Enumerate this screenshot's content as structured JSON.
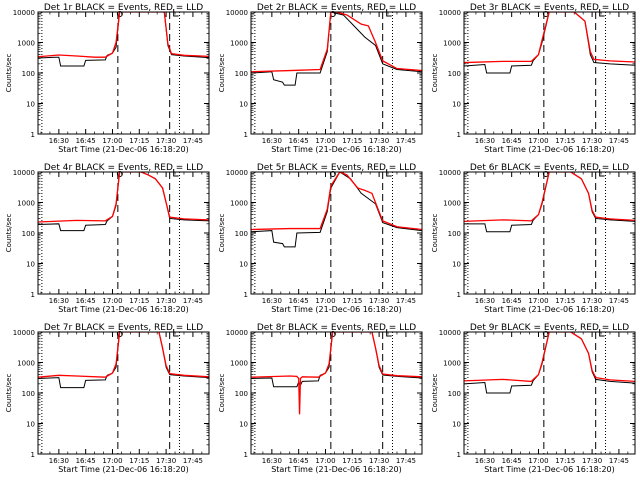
{
  "chart_data": {
    "type": "line",
    "layout": "3x3 grid",
    "colors": {
      "events": "#000000",
      "lld": "#ff0000",
      "markers": "#000000"
    },
    "xlabel": "Start Time (21-Dec-06 16:18:20)",
    "ylabel": "Counts/sec",
    "x_ticks": [
      "16:30",
      "16:45",
      "17:00",
      "17:15",
      "17:30",
      "17:45"
    ],
    "x_tick_minutes": [
      30,
      45,
      60,
      75,
      90,
      105
    ],
    "y_ticks": [
      "1",
      "10",
      "100",
      "1000",
      "10000"
    ],
    "y_tick_values": [
      1,
      10,
      100,
      1000,
      10000
    ],
    "xlim_minutes_after_1600": [
      18.333,
      114.0
    ],
    "ylim": [
      1,
      10000
    ],
    "y_scale": "log",
    "dotted_lines_minutes": [
      20.5,
      97.5
    ],
    "dashed_lines_minutes": [
      63.0,
      92.0
    ],
    "panels": [
      {
        "title": "Det 1r BLACK = Events, RED = LLD",
        "series": [
          {
            "name": "Events",
            "x": [
              18.3,
              28,
              30,
              31,
              44,
              45,
              56,
              57,
              60,
              62,
              64,
              70,
              89,
              91,
              93,
              100,
              114
            ],
            "y": [
              310,
              330,
              330,
              170,
              170,
              260,
              270,
              380,
              450,
              700,
              10000,
              10000,
              10000,
              800,
              400,
              360,
              320
            ]
          },
          {
            "name": "LLD",
            "x": [
              18.3,
              30,
              40,
              50,
              56,
              60,
              62,
              64,
              70,
              89,
              91,
              93,
              100,
              114
            ],
            "y": [
              340,
              390,
              360,
              330,
              330,
              450,
              1000,
              10000,
              10000,
              10000,
              900,
              430,
              380,
              350
            ]
          }
        ]
      },
      {
        "title": "Det 2r BLACK = Events, RED = LLD",
        "series": [
          {
            "name": "Events",
            "x": [
              18.3,
              30,
              31,
              36,
              37,
              43,
              44,
              57,
              61,
              63,
              70,
              75,
              82,
              88,
              92,
              100,
              114
            ],
            "y": [
              100,
              110,
              60,
              50,
              40,
              40,
              100,
              100,
              500,
              10000,
              8000,
              4000,
              1500,
              800,
              200,
              130,
              110
            ]
          },
          {
            "name": "LLD",
            "x": [
              18.3,
              40,
              57,
              61,
              63,
              66,
              72,
              80,
              84,
              88,
              92,
              100,
              114
            ],
            "y": [
              110,
              120,
              130,
              600,
              10000,
              10000,
              8000,
              4000,
              3500,
              1000,
              250,
              140,
              120
            ]
          }
        ]
      },
      {
        "title": "Det 3r BLACK = Events, RED = LLD",
        "series": [
          {
            "name": "Events",
            "x": [
              18.3,
              30,
              31,
              44,
              45,
              56,
              57,
              60,
              62,
              66,
              80,
              86,
              89,
              91,
              100,
              114
            ],
            "y": [
              170,
              190,
              100,
              100,
              170,
              180,
              250,
              400,
              1000,
              10000,
              10000,
              5000,
              400,
              220,
              200,
              180
            ]
          },
          {
            "name": "LLD",
            "x": [
              18.3,
              40,
              56,
              60,
              62,
              66,
              80,
              86,
              89,
              91,
              100,
              114
            ],
            "y": [
              220,
              240,
              240,
              400,
              1200,
              10000,
              10000,
              5000,
              500,
              280,
              250,
              230
            ]
          }
        ]
      },
      {
        "title": "Det 4r BLACK = Events, RED = LLD",
        "series": [
          {
            "name": "Events",
            "x": [
              18.3,
              30,
              31,
              44,
              45,
              56,
              57,
              60,
              62,
              64,
              76,
              80,
              84,
              88,
              90,
              92,
              100,
              114
            ],
            "y": [
              190,
              200,
              120,
              120,
              180,
              190,
              250,
              350,
              800,
              10000,
              10000,
              8000,
              6000,
              3000,
              1000,
              300,
              270,
              250
            ]
          },
          {
            "name": "LLD",
            "x": [
              18.3,
              40,
              56,
              60,
              62,
              64,
              76,
              80,
              84,
              88,
              90,
              92,
              100,
              114
            ],
            "y": [
              230,
              260,
              250,
              350,
              900,
              10000,
              10000,
              8000,
              6000,
              3000,
              1000,
              330,
              290,
              270
            ]
          }
        ]
      },
      {
        "title": "Det 5r BLACK = Events, RED = LLD",
        "series": [
          {
            "name": "Events",
            "x": [
              18.3,
              30,
              31,
              36,
              37,
              43,
              44,
              57,
              61,
              63,
              68,
              74,
              80,
              88,
              92,
              100,
              114
            ],
            "y": [
              110,
              120,
              50,
              45,
              35,
              35,
              100,
              105,
              500,
              3000,
              10000,
              6000,
              2000,
              900,
              220,
              150,
              120
            ]
          },
          {
            "name": "LLD",
            "x": [
              18.3,
              40,
              57,
              61,
              63,
              68,
              72,
              78,
              82,
              86,
              89,
              92,
              100,
              114
            ],
            "y": [
              130,
              140,
              140,
              600,
              3500,
              10000,
              8000,
              3000,
              2500,
              2000,
              700,
              250,
              160,
              130
            ]
          }
        ]
      },
      {
        "title": "Det 6r BLACK = Events, RED = LLD",
        "series": [
          {
            "name": "Events",
            "x": [
              18.3,
              30,
              31,
              44,
              45,
              56,
              57,
              60,
              62,
              66,
              78,
              84,
              88,
              90,
              92,
              100,
              114
            ],
            "y": [
              200,
              200,
              110,
              110,
              180,
              190,
              260,
              400,
              900,
              10000,
              10000,
              6000,
              2000,
              500,
              300,
              270,
              240
            ]
          },
          {
            "name": "LLD",
            "x": [
              18.3,
              40,
              56,
              60,
              62,
              66,
              78,
              84,
              88,
              90,
              92,
              100,
              114
            ],
            "y": [
              240,
              270,
              250,
              400,
              1000,
              10000,
              10000,
              6000,
              2000,
              550,
              330,
              290,
              260
            ]
          }
        ]
      },
      {
        "title": "Det 7r BLACK = Events, RED = LLD",
        "series": [
          {
            "name": "Events",
            "x": [
              18.3,
              30,
              31,
              44,
              45,
              56,
              57,
              60,
              62,
              64,
              86,
              88,
              90,
              92,
              100,
              114
            ],
            "y": [
              300,
              320,
              150,
              150,
              260,
              270,
              380,
              450,
              700,
              10000,
              10000,
              3000,
              700,
              400,
              360,
              320
            ]
          },
          {
            "name": "LLD",
            "x": [
              18.3,
              30,
              40,
              56,
              60,
              62,
              64,
              86,
              88,
              90,
              92,
              100,
              114
            ],
            "y": [
              330,
              380,
              360,
              330,
              450,
              900,
              10000,
              10000,
              3000,
              800,
              430,
              380,
              340
            ]
          }
        ]
      },
      {
        "title": "Det 8r BLACK = Events, RED = LLD",
        "series": [
          {
            "name": "Events",
            "x": [
              18.3,
              30,
              31,
              44,
              45,
              46,
              47,
              56,
              57,
              60,
              62,
              64,
              86,
              88,
              90,
              92,
              100,
              114
            ],
            "y": [
              300,
              310,
              160,
              160,
              230,
              180,
              240,
              250,
              380,
              450,
              700,
              10000,
              10000,
              3000,
              700,
              390,
              350,
              310
            ]
          },
          {
            "name": "LLD",
            "x": [
              18.3,
              40,
              44,
              45,
              45.5,
              46,
              47,
              56,
              60,
              62,
              64,
              86,
              88,
              90,
              92,
              100,
              114
            ],
            "y": [
              330,
              360,
              350,
              300,
              20,
              300,
              340,
              330,
              450,
              900,
              10000,
              10000,
              3000,
              800,
              420,
              370,
              340
            ]
          }
        ]
      },
      {
        "title": "Det 9r BLACK = Events, RED = LLD",
        "series": [
          {
            "name": "Events",
            "x": [
              18.3,
              30,
              31,
              44,
              45,
              56,
              57,
              60,
              62,
              66,
              78,
              84,
              88,
              90,
              92,
              100,
              114
            ],
            "y": [
              200,
              220,
              100,
              100,
              170,
              180,
              250,
              400,
              900,
              10000,
              10000,
              6000,
              2000,
              500,
              280,
              240,
              210
            ]
          },
          {
            "name": "LLD",
            "x": [
              18.3,
              40,
              56,
              60,
              62,
              66,
              78,
              84,
              88,
              90,
              92,
              100,
              114
            ],
            "y": [
              250,
              280,
              240,
              400,
              1000,
              10000,
              10000,
              6000,
              2000,
              550,
              320,
              270,
              240
            ]
          }
        ]
      }
    ]
  }
}
